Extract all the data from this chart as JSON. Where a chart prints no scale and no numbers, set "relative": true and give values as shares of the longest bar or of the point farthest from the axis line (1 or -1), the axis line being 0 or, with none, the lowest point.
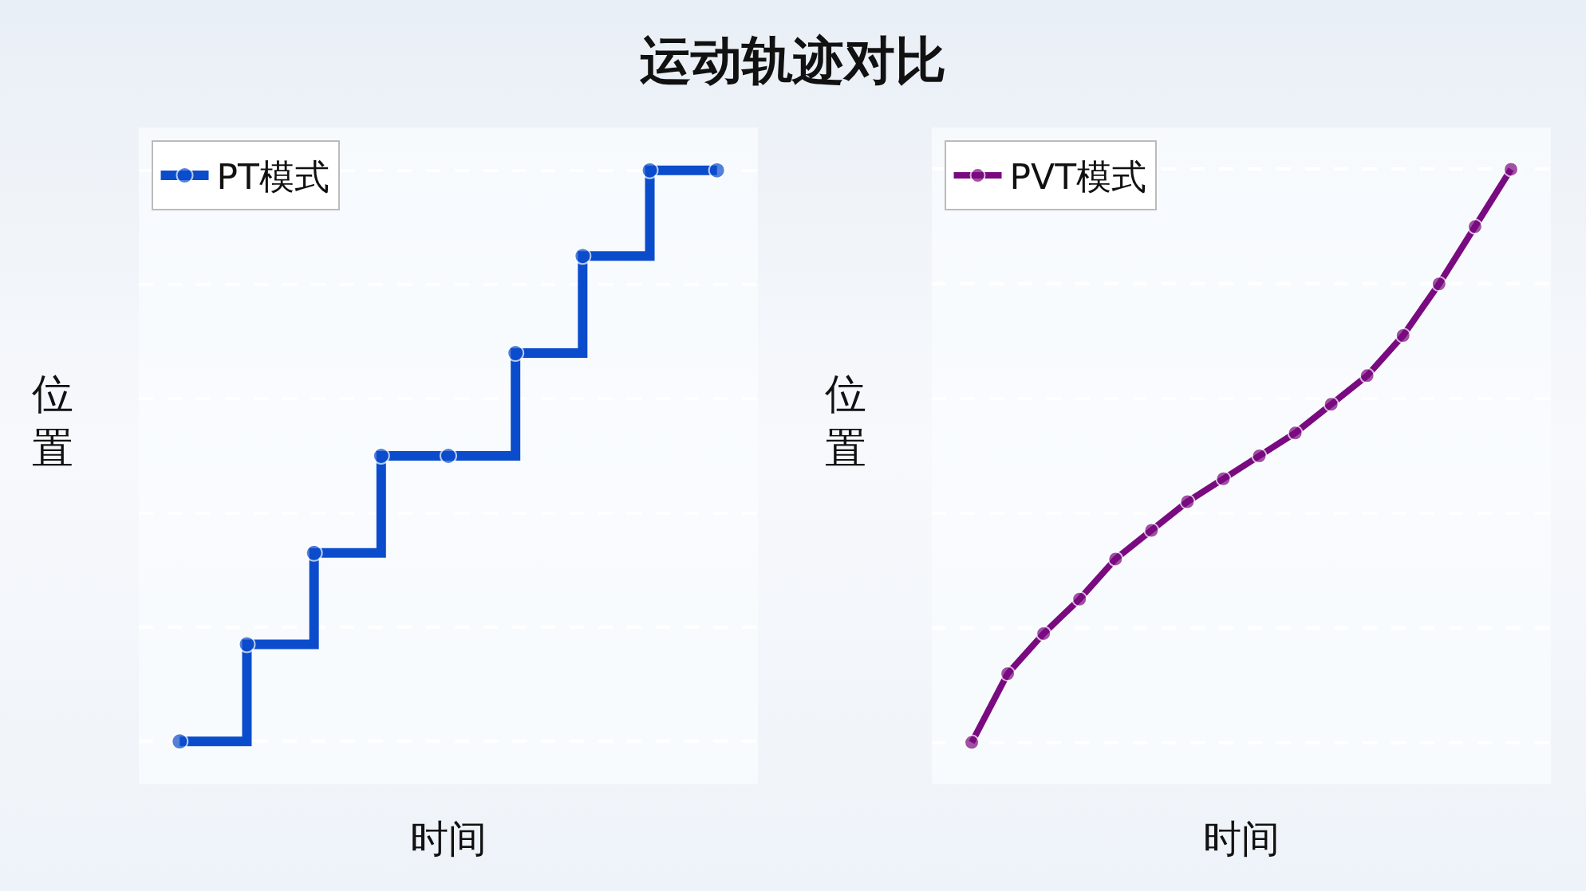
{
  "chart_data": [
    {
      "type": "step",
      "title": "运动轨迹对比",
      "xlabel": "时间",
      "ylabel": "位置",
      "relative": true,
      "grid": true,
      "legend": "top left",
      "marker": "circle",
      "line_style": "solid",
      "categories": [
        null,
        null,
        null,
        null,
        null,
        null,
        null,
        null,
        null
      ],
      "series": [
        {
          "name": "PT模式",
          "color": "#0b4ccc",
          "values": [
            0,
            0.17,
            0.33,
            0.5,
            0.5,
            0.68,
            0.85,
            1,
            1
          ]
        }
      ]
    },
    {
      "type": "line",
      "xlabel": "时间",
      "ylabel": "位置",
      "relative": true,
      "grid": true,
      "legend": "top left",
      "marker": "circle",
      "line_style": "solid",
      "categories": [
        null,
        null,
        null,
        null,
        null,
        null,
        null,
        null,
        null,
        null,
        null,
        null,
        null,
        null,
        null,
        null
      ],
      "series": [
        {
          "name": "PVT模式",
          "color": "#7a0a80",
          "values": [
            0,
            0.12,
            0.19,
            0.25,
            0.32,
            0.37,
            0.42,
            0.46,
            0.5,
            0.54,
            0.59,
            0.64,
            0.71,
            0.8,
            0.9,
            1
          ]
        }
      ]
    }
  ]
}
